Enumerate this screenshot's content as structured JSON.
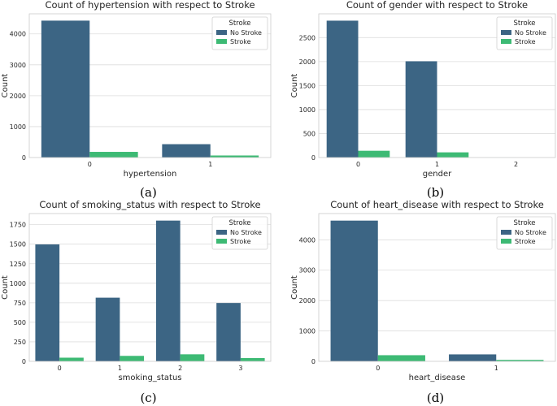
{
  "colors": {
    "no_stroke": "#3c6584",
    "stroke": "#3dba74"
  },
  "chart_data": [
    {
      "type": "bar",
      "title": "Count of hypertension with respect to Stroke",
      "xlabel": "hypertension",
      "ylabel": "Count",
      "categories": [
        "0",
        "1"
      ],
      "series": [
        {
          "name": "No Stroke",
          "values": [
            4429,
            432
          ]
        },
        {
          "name": "Stroke",
          "values": [
            183,
            66
          ]
        }
      ],
      "ylim": [
        0,
        4650
      ],
      "yticks": [
        0,
        1000,
        2000,
        3000,
        4000
      ],
      "legend_title": "Stroke",
      "legend_position": "top-right",
      "caption": "(a)"
    },
    {
      "type": "bar",
      "title": "Count of gender with respect to Stroke",
      "xlabel": "gender",
      "ylabel": "Count",
      "categories": [
        "0",
        "1",
        "2"
      ],
      "series": [
        {
          "name": "No Stroke",
          "values": [
            2853,
            2007,
            1
          ]
        },
        {
          "name": "Stroke",
          "values": [
            141,
            108,
            0
          ]
        }
      ],
      "ylim": [
        0,
        2996
      ],
      "yticks": [
        0,
        500,
        1000,
        1500,
        2000,
        2500
      ],
      "legend_title": "Stroke",
      "legend_position": "top-right",
      "caption": "(b)"
    },
    {
      "type": "bar",
      "title": "Count of smoking_status with respect to Stroke",
      "xlabel": "smoking_status",
      "ylabel": "Count",
      "categories": [
        "0",
        "1",
        "2",
        "3"
      ],
      "series": [
        {
          "name": "No Stroke",
          "values": [
            1497,
            815,
            1802,
            747
          ]
        },
        {
          "name": "Stroke",
          "values": [
            47,
            70,
            90,
            42
          ]
        }
      ],
      "ylim": [
        0,
        1892
      ],
      "yticks": [
        0,
        250,
        500,
        750,
        1000,
        1250,
        1500,
        1750
      ],
      "legend_title": "Stroke",
      "legend_position": "top-right",
      "caption": "(c)"
    },
    {
      "type": "bar",
      "title": "Count of heart_disease with respect to Stroke",
      "xlabel": "heart_disease",
      "ylabel": "Count",
      "categories": [
        "0",
        "1"
      ],
      "series": [
        {
          "name": "No Stroke",
          "values": [
            4632,
            229
          ]
        },
        {
          "name": "Stroke",
          "values": [
            202,
            47
          ]
        }
      ],
      "ylim": [
        0,
        4864
      ],
      "yticks": [
        0,
        1000,
        2000,
        3000,
        4000
      ],
      "legend_title": "Stroke",
      "legend_position": "top-right",
      "caption": "(d)"
    }
  ]
}
